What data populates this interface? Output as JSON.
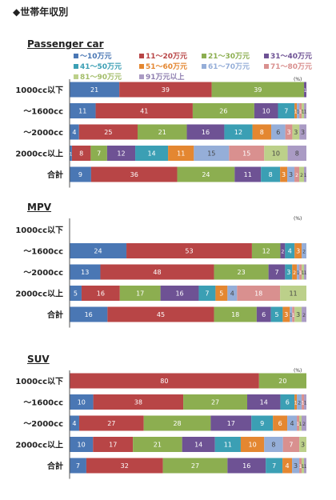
{
  "page_title": "◆世帯年収別",
  "unit": "(%)",
  "legend": [
    {
      "label": "〜10万元",
      "color": "#4a77b4"
    },
    {
      "label": "11〜20万元",
      "color": "#b84546"
    },
    {
      "label": "21〜30万元",
      "color": "#8cae50"
    },
    {
      "label": "31〜40万元",
      "color": "#6e5294"
    },
    {
      "label": "41〜50万元",
      "color": "#3b9fb4"
    },
    {
      "label": "51〜60万元",
      "color": "#e48731"
    },
    {
      "label": "61〜70万元",
      "color": "#95aed8"
    },
    {
      "label": "71〜80万元",
      "color": "#d9908f"
    },
    {
      "label": "81〜90万元",
      "color": "#bcd08a"
    },
    {
      "label": "91万元以上",
      "color": "#aa9bc4"
    }
  ],
  "chart_data": [
    {
      "type": "bar",
      "stacked": true,
      "orientation": "horizontal",
      "title": "Passenger car",
      "categories": [
        "1000cc以下",
        "〜1600cc",
        "〜2000cc",
        "2000cc以上",
        "合計"
      ],
      "series": [
        {
          "name": "〜10万元",
          "values": [
            21,
            11,
            4,
            1,
            9
          ]
        },
        {
          "name": "11〜20万元",
          "values": [
            39,
            41,
            25,
            8,
            36
          ]
        },
        {
          "name": "21〜30万元",
          "values": [
            39,
            26,
            21,
            7,
            24
          ]
        },
        {
          "name": "31〜40万元",
          "values": [
            1,
            10,
            16,
            12,
            11
          ]
        },
        {
          "name": "41〜50万元",
          "values": [
            0,
            7,
            12,
            14,
            8
          ]
        },
        {
          "name": "51〜60万元",
          "values": [
            0,
            1,
            8,
            11,
            3
          ]
        },
        {
          "name": "61〜70万元",
          "values": [
            0,
            1,
            6,
            15,
            3
          ]
        },
        {
          "name": "71〜80万元",
          "values": [
            0,
            1,
            3,
            15,
            2
          ]
        },
        {
          "name": "81〜90万元",
          "values": [
            0,
            1,
            3,
            10,
            2
          ]
        },
        {
          "name": "91万元以上",
          "values": [
            0,
            1,
            3,
            8,
            1
          ]
        }
      ]
    },
    {
      "type": "bar",
      "stacked": true,
      "orientation": "horizontal",
      "title": "MPV",
      "categories": [
        "1000cc以下",
        "〜1600cc",
        "〜2000cc",
        "2000cc以上",
        "合計"
      ],
      "series": [
        {
          "name": "〜10万元",
          "values": [
            0,
            24,
            13,
            5,
            16
          ]
        },
        {
          "name": "11〜20万元",
          "values": [
            0,
            53,
            48,
            16,
            45
          ]
        },
        {
          "name": "21〜30万元",
          "values": [
            0,
            12,
            23,
            17,
            18
          ]
        },
        {
          "name": "31〜40万元",
          "values": [
            0,
            2,
            7,
            16,
            6
          ]
        },
        {
          "name": "41〜50万元",
          "values": [
            0,
            4,
            3,
            7,
            5
          ]
        },
        {
          "name": "51〜60万元",
          "values": [
            0,
            3,
            2,
            5,
            3
          ]
        },
        {
          "name": "61〜70万元",
          "values": [
            0,
            2,
            1,
            4,
            1
          ]
        },
        {
          "name": "71〜80万元",
          "values": [
            0,
            0,
            1,
            18,
            1
          ]
        },
        {
          "name": "81〜90万元",
          "values": [
            0,
            0,
            1,
            11,
            3
          ]
        },
        {
          "name": "91万元以上",
          "values": [
            0,
            0,
            1,
            0,
            2
          ]
        }
      ]
    },
    {
      "type": "bar",
      "stacked": true,
      "orientation": "horizontal",
      "title": "SUV",
      "categories": [
        "1000cc以下",
        "〜1600cc",
        "〜2000cc",
        "2000cc以上",
        "合計"
      ],
      "series": [
        {
          "name": "〜10万元",
          "values": [
            0,
            10,
            4,
            10,
            7
          ]
        },
        {
          "name": "11〜20万元",
          "values": [
            80,
            38,
            27,
            17,
            32
          ]
        },
        {
          "name": "21〜30万元",
          "values": [
            20,
            27,
            28,
            21,
            27
          ]
        },
        {
          "name": "31〜40万元",
          "values": [
            0,
            14,
            17,
            14,
            16
          ]
        },
        {
          "name": "41〜50万元",
          "values": [
            0,
            6,
            9,
            11,
            7
          ]
        },
        {
          "name": "51〜60万元",
          "values": [
            0,
            1,
            6,
            10,
            4
          ]
        },
        {
          "name": "61〜70万元",
          "values": [
            0,
            2,
            4,
            8,
            3
          ]
        },
        {
          "name": "71〜80万元",
          "values": [
            0,
            1,
            1,
            7,
            1
          ]
        },
        {
          "name": "81〜90万元",
          "values": [
            0,
            0,
            1,
            3,
            1
          ]
        },
        {
          "name": "91万元以上",
          "values": [
            0,
            1,
            2,
            0,
            1
          ]
        }
      ]
    }
  ]
}
